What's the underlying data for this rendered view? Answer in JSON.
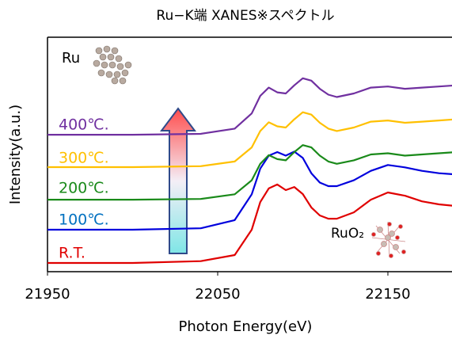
{
  "chart_data": {
    "type": "line",
    "title": "Ru−K端 XANES※スペクトル",
    "x_label": "Photon Energy(eV)",
    "y_label": "Intensity(a.u.)",
    "annotations": [
      "Ru",
      "RuO₂"
    ],
    "x": [
      21950,
      22000,
      22040,
      22060,
      22070,
      22075,
      22080,
      22085,
      22090,
      22095,
      22100,
      22105,
      22110,
      22115,
      22120,
      22130,
      22140,
      22150,
      22160,
      22170,
      22180,
      22190
    ],
    "xlim": [
      21950,
      22190
    ],
    "xticks": [
      21950,
      22050,
      22150
    ],
    "ylim": [
      0,
      10
    ],
    "series": [
      {
        "name": "R.T.",
        "color": "#e00000",
        "values": [
          0.37,
          0.37,
          0.45,
          0.71,
          1.79,
          2.97,
          3.55,
          3.72,
          3.48,
          3.61,
          3.31,
          2.74,
          2.4,
          2.26,
          2.26,
          2.53,
          3.07,
          3.38,
          3.24,
          3.0,
          2.87,
          2.8
        ]
      },
      {
        "name": "100℃.",
        "color": "#0000dd",
        "values": [
          1.79,
          1.79,
          1.85,
          2.2,
          3.3,
          4.4,
          4.95,
          5.1,
          4.95,
          5.12,
          4.85,
          4.2,
          3.8,
          3.65,
          3.65,
          3.9,
          4.3,
          4.55,
          4.45,
          4.3,
          4.2,
          4.15
        ]
      },
      {
        "name": "200℃.",
        "color": "#1a8a1a",
        "values": [
          3.07,
          3.07,
          3.1,
          3.3,
          3.9,
          4.6,
          4.97,
          4.8,
          4.75,
          5.1,
          5.4,
          5.3,
          4.95,
          4.7,
          4.6,
          4.75,
          5.0,
          5.05,
          4.95,
          5.0,
          5.05,
          5.1
        ]
      },
      {
        "name": "300℃.",
        "color": "#ffc000",
        "values": [
          4.46,
          4.46,
          4.5,
          4.7,
          5.3,
          6.0,
          6.37,
          6.2,
          6.15,
          6.5,
          6.8,
          6.7,
          6.35,
          6.1,
          6.0,
          6.15,
          6.4,
          6.45,
          6.35,
          6.4,
          6.45,
          6.5
        ]
      },
      {
        "name": "400℃.",
        "color": "#7030a0",
        "values": [
          5.84,
          5.84,
          5.88,
          6.1,
          6.75,
          7.5,
          7.85,
          7.65,
          7.6,
          7.95,
          8.25,
          8.15,
          7.8,
          7.55,
          7.45,
          7.6,
          7.85,
          7.9,
          7.8,
          7.85,
          7.9,
          7.95
        ]
      }
    ]
  }
}
